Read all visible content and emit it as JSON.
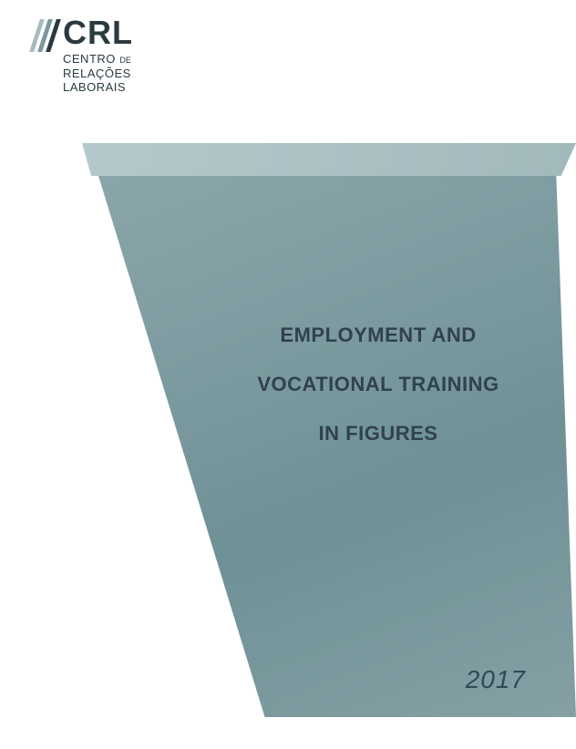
{
  "logo": {
    "acronym": "CRL",
    "subtitle_line1_a": "CENTRO",
    "subtitle_line1_b": "DE",
    "subtitle_line2": "RELAÇÕES",
    "subtitle_line3": "LABORAIS",
    "bar_colors": [
      "#a8bcbf",
      "#7a979c",
      "#2a3a3f"
    ],
    "text_color": "#2a3a3f"
  },
  "cover": {
    "title_line1": "EMPLOYMENT AND",
    "title_line2": "VOCATIONAL TRAINING",
    "title_line3": "IN FIGURES",
    "year": "2017",
    "title_color": "#31414f",
    "title_fontsize": 22,
    "year_color": "#2e4a57",
    "year_fontsize": 28,
    "background_color": "#ffffff",
    "top_bar_gradient": [
      "#b5c9cc",
      "#a2b9bc"
    ],
    "main_shape_gradient": [
      "#8ba6aa",
      "#7b9a9f",
      "#6e9196",
      "#85a0a4"
    ]
  }
}
